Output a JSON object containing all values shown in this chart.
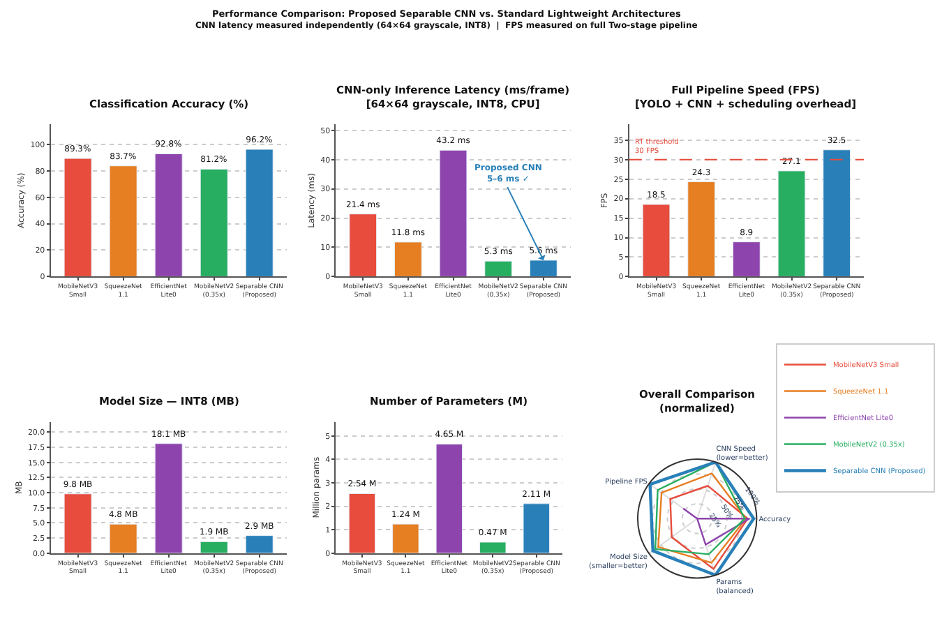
{
  "chart_data": [
    {
      "type": "bar",
      "title": "Classification Accuracy (%)",
      "annotations": [
        "Performance Comparison: Proposed Separable CNN vs. Standard Lightweight Architectures",
        "CNN latency measured independently (64×64 grayscale, INT8)  |  FPS measured on full Two-stage pipeline"
      ],
      "ylabel": "Accuracy (%)",
      "categories": [
        "MobileNetV3\nSmall",
        "SqueezeNet\n1.1",
        "EfficientNet\nLite0",
        "MobileNetV2\n(0.35x)",
        "Separable CNN\n(Proposed)"
      ],
      "values": [
        89.3,
        83.7,
        92.8,
        81.2,
        96.2
      ],
      "colors": [
        "#e74c3c",
        "#e67e22",
        "#8e44ad",
        "#27ae60",
        "#2980b9"
      ],
      "value_labels": [
        "89.3%",
        "83.7%",
        "92.8%",
        "81.2%",
        "96.2%"
      ],
      "ylim": [
        0,
        115
      ],
      "yticks": [
        0,
        20,
        40,
        60,
        80,
        100
      ],
      "grid": "y"
    },
    {
      "type": "bar",
      "title": "CNN-only Inference Latency (ms/frame)\n[64×64 grayscale, INT8, CPU]",
      "ylabel": "Latency (ms)",
      "categories": [
        "MobileNetV3\nSmall",
        "SqueezeNet\n1.1",
        "EfficientNet\nLite0",
        "MobileNetV2\n(0.35x)",
        "Separable CNN\n(Proposed)"
      ],
      "values": [
        21.4,
        11.8,
        43.2,
        5.3,
        5.6
      ],
      "colors": [
        "#e74c3c",
        "#e67e22",
        "#8e44ad",
        "#27ae60",
        "#2980b9"
      ],
      "value_labels": [
        "21.4 ms",
        "11.8 ms",
        "43.2 ms",
        "5.3 ms",
        "5.6 ms"
      ],
      "annotations": [
        {
          "text": "Proposed CNN\n5–6 ms ✓",
          "x": "Separable CNN\n(Proposed)",
          "y": 5.6
        }
      ],
      "ylim": [
        0,
        52
      ],
      "yticks": [
        0,
        10,
        20,
        30,
        40,
        50
      ],
      "grid": "y"
    },
    {
      "type": "bar",
      "title": "Full Pipeline Speed (FPS)\n[YOLO + CNN + scheduling overhead]",
      "ylabel": "FPS",
      "categories": [
        "MobileNetV3\nSmall",
        "SqueezeNet\n1.1",
        "EfficientNet\nLite0",
        "MobileNetV2\n(0.35x)",
        "Separable CNN\n(Proposed)"
      ],
      "values": [
        18.5,
        24.3,
        8.9,
        27.1,
        32.5
      ],
      "colors": [
        "#e74c3c",
        "#e67e22",
        "#8e44ad",
        "#27ae60",
        "#2980b9"
      ],
      "data_labels": true,
      "ref_lines": [
        {
          "axis": "y",
          "value": 30,
          "label": "RT threshold\n30 FPS",
          "color": "#e74c3c",
          "line_style": "dashed"
        }
      ],
      "ylim": [
        0,
        39
      ],
      "yticks": [
        0,
        5,
        10,
        15,
        20,
        25,
        30,
        35
      ],
      "grid": "y"
    },
    {
      "type": "bar",
      "title": "Model Size — INT8 (MB)",
      "ylabel": "MB",
      "categories": [
        "MobileNetV3\nSmall",
        "SqueezeNet\n1.1",
        "EfficientNet\nLite0",
        "MobileNetV2\n(0.35x)",
        "Separable CNN\n(Proposed)"
      ],
      "values": [
        9.8,
        4.8,
        18.1,
        1.9,
        2.9
      ],
      "colors": [
        "#e74c3c",
        "#e67e22",
        "#8e44ad",
        "#27ae60",
        "#2980b9"
      ],
      "value_labels": [
        "9.8 MB",
        "4.8 MB",
        "18.1 MB",
        "1.9 MB",
        "2.9 MB"
      ],
      "ylim": [
        0,
        21.7
      ],
      "yticks": [
        {
          "value": 0,
          "label": "0.0"
        },
        2.5,
        {
          "value": 5,
          "label": "5.0"
        },
        7.5,
        {
          "value": 10,
          "label": "10.0"
        },
        12.5,
        {
          "value": 15,
          "label": "15.0"
        },
        17.5,
        {
          "value": 20,
          "label": "20.0"
        }
      ],
      "grid": "y"
    },
    {
      "type": "bar",
      "title": "Number of Parameters (M)",
      "ylabel": "Million params",
      "categories": [
        "MobileNetV3\nSmall",
        "SqueezeNet\n1.1",
        "EfficientNet\nLite0",
        "MobileNetV2\n(0.35x)",
        "Separable CNN\n(Proposed)"
      ],
      "values": [
        2.54,
        1.24,
        4.65,
        0.47,
        2.11
      ],
      "colors": [
        "#e74c3c",
        "#e67e22",
        "#8e44ad",
        "#27ae60",
        "#2980b9"
      ],
      "value_labels": [
        "2.54 M",
        "1.24 M",
        "4.65 M",
        "0.47 M",
        "2.11 M"
      ],
      "ylim": [
        0,
        5.6
      ],
      "yticks": [
        0,
        1,
        2,
        3,
        4,
        5
      ],
      "grid": "y"
    },
    {
      "type": "radar",
      "title": "Overall Comparison\n(normalized)",
      "categories": [
        "CNN Speed\n(lower=better)",
        "Accuracy",
        "Params\n(balanced)",
        "Model Size\n(smaller=better)",
        "Pipeline FPS"
      ],
      "ylim": [
        0,
        100
      ],
      "yticks": [
        {
          "value": 25,
          "label": "25%"
        },
        {
          "value": 50,
          "label": "50%"
        },
        {
          "value": 75,
          "label": "75%"
        },
        {
          "value": 100,
          "label": "100%"
        }
      ],
      "legend": "top right",
      "series": [
        {
          "name": "MobileNetV3 Small",
          "color": "#e74c3c",
          "values": [
            58,
            85,
            89,
            53,
            56
          ]
        },
        {
          "name": "SqueezeNet 1.1",
          "color": "#e67e22",
          "values": [
            80,
            82,
            78,
            81,
            74
          ]
        },
        {
          "name": "EfficientNet Lite0",
          "color": "#8e44ad",
          "values": [
            0,
            88,
            46,
            0,
            29
          ]
        },
        {
          "name": "MobileNetV2 (0.35x)",
          "color": "#27ae60",
          "values": [
            100,
            80,
            63,
            87,
            82
          ]
        },
        {
          "name": "Separable CNN (Proposed)",
          "color": "#2980b9",
          "values": [
            100,
            95,
            100,
            92,
            98
          ]
        }
      ]
    }
  ]
}
